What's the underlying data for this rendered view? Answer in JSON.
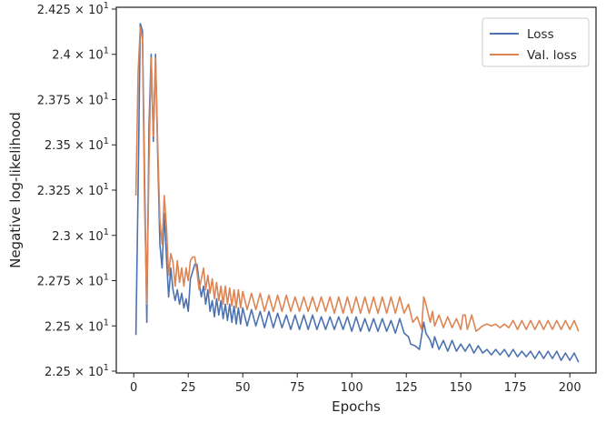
{
  "chart_data": {
    "type": "line",
    "title": "",
    "xlabel": "Epochs",
    "ylabel": "Negative log-likelihood",
    "xlim": [
      -8,
      212
    ],
    "ylim": [
      22.24,
      24.26
    ],
    "x_ticks": [
      0,
      25,
      50,
      75,
      100,
      125,
      150,
      175,
      200
    ],
    "y_ticks": [
      {
        "value": 22.25,
        "label": "2.25 × 10^1"
      },
      {
        "value": 22.5,
        "label": "2.25 × 10^1"
      },
      {
        "value": 22.75,
        "label": "2.275 × 10^1"
      },
      {
        "value": 23.0,
        "label": "2.3 × 10^1"
      },
      {
        "value": 23.25,
        "label": "2.325 × 10^1"
      },
      {
        "value": 23.5,
        "label": "2.35 × 10^1"
      },
      {
        "value": 23.75,
        "label": "2.375 × 10^1"
      },
      {
        "value": 24.0,
        "label": "2.4 × 10^1"
      },
      {
        "value": 24.25,
        "label": "2.425 × 10^1"
      }
    ],
    "legend_position": "top-right",
    "grid": false,
    "series": [
      {
        "name": "Loss",
        "color": "#4c72b0",
        "points": [
          [
            1,
            22.45
          ],
          [
            2,
            23.25
          ],
          [
            3,
            24.17
          ],
          [
            4,
            24.13
          ],
          [
            5,
            23.3
          ],
          [
            6,
            22.52
          ],
          [
            7,
            23.6
          ],
          [
            8,
            24.0
          ],
          [
            9,
            23.52
          ],
          [
            10,
            24.0
          ],
          [
            11,
            23.44
          ],
          [
            12,
            22.95
          ],
          [
            13,
            22.82
          ],
          [
            14,
            23.12
          ],
          [
            15,
            22.88
          ],
          [
            16,
            22.66
          ],
          [
            17,
            22.82
          ],
          [
            18,
            22.7
          ],
          [
            19,
            22.64
          ],
          [
            20,
            22.7
          ],
          [
            21,
            22.62
          ],
          [
            22,
            22.68
          ],
          [
            23,
            22.6
          ],
          [
            24,
            22.65
          ],
          [
            25,
            22.58
          ],
          [
            26,
            22.76
          ],
          [
            27,
            22.8
          ],
          [
            28,
            22.84
          ],
          [
            29,
            22.84
          ],
          [
            30,
            22.74
          ],
          [
            31,
            22.66
          ],
          [
            32,
            22.72
          ],
          [
            33,
            22.62
          ],
          [
            34,
            22.7
          ],
          [
            35,
            22.58
          ],
          [
            36,
            22.64
          ],
          [
            37,
            22.55
          ],
          [
            38,
            22.65
          ],
          [
            39,
            22.56
          ],
          [
            40,
            22.64
          ],
          [
            41,
            22.54
          ],
          [
            42,
            22.62
          ],
          [
            43,
            22.53
          ],
          [
            44,
            22.62
          ],
          [
            45,
            22.52
          ],
          [
            46,
            22.61
          ],
          [
            47,
            22.51
          ],
          [
            48,
            22.6
          ],
          [
            49,
            22.51
          ],
          [
            50,
            22.6
          ],
          [
            52,
            22.5
          ],
          [
            54,
            22.59
          ],
          [
            56,
            22.5
          ],
          [
            58,
            22.58
          ],
          [
            60,
            22.49
          ],
          [
            62,
            22.58
          ],
          [
            64,
            22.49
          ],
          [
            66,
            22.57
          ],
          [
            68,
            22.49
          ],
          [
            70,
            22.56
          ],
          [
            72,
            22.48
          ],
          [
            74,
            22.56
          ],
          [
            76,
            22.48
          ],
          [
            78,
            22.56
          ],
          [
            80,
            22.48
          ],
          [
            82,
            22.56
          ],
          [
            84,
            22.48
          ],
          [
            86,
            22.55
          ],
          [
            88,
            22.48
          ],
          [
            90,
            22.55
          ],
          [
            92,
            22.48
          ],
          [
            94,
            22.55
          ],
          [
            96,
            22.48
          ],
          [
            98,
            22.55
          ],
          [
            100,
            22.47
          ],
          [
            102,
            22.55
          ],
          [
            104,
            22.47
          ],
          [
            106,
            22.54
          ],
          [
            108,
            22.47
          ],
          [
            110,
            22.54
          ],
          [
            112,
            22.47
          ],
          [
            114,
            22.54
          ],
          [
            116,
            22.47
          ],
          [
            118,
            22.53
          ],
          [
            120,
            22.46
          ],
          [
            122,
            22.54
          ],
          [
            124,
            22.46
          ],
          [
            126,
            22.44
          ],
          [
            127,
            22.4
          ],
          [
            129,
            22.39
          ],
          [
            131,
            22.37
          ],
          [
            133,
            22.52
          ],
          [
            134,
            22.46
          ],
          [
            136,
            22.42
          ],
          [
            137,
            22.38
          ],
          [
            138,
            22.44
          ],
          [
            140,
            22.37
          ],
          [
            142,
            22.42
          ],
          [
            144,
            22.36
          ],
          [
            146,
            22.42
          ],
          [
            148,
            22.36
          ],
          [
            150,
            22.4
          ],
          [
            152,
            22.36
          ],
          [
            154,
            22.4
          ],
          [
            156,
            22.35
          ],
          [
            158,
            22.39
          ],
          [
            160,
            22.35
          ],
          [
            162,
            22.37
          ],
          [
            164,
            22.34
          ],
          [
            166,
            22.37
          ],
          [
            168,
            22.34
          ],
          [
            170,
            22.37
          ],
          [
            172,
            22.33
          ],
          [
            174,
            22.37
          ],
          [
            176,
            22.33
          ],
          [
            178,
            22.36
          ],
          [
            180,
            22.33
          ],
          [
            182,
            22.36
          ],
          [
            184,
            22.32
          ],
          [
            186,
            22.36
          ],
          [
            188,
            22.32
          ],
          [
            190,
            22.36
          ],
          [
            192,
            22.32
          ],
          [
            194,
            22.36
          ],
          [
            196,
            22.31
          ],
          [
            198,
            22.35
          ],
          [
            200,
            22.31
          ],
          [
            202,
            22.35
          ],
          [
            204,
            22.3
          ]
        ]
      },
      {
        "name": "Val. loss",
        "color": "#dd8452",
        "points": [
          [
            1,
            23.22
          ],
          [
            2,
            23.9
          ],
          [
            3,
            24.15
          ],
          [
            4,
            24.08
          ],
          [
            5,
            23.15
          ],
          [
            6,
            22.62
          ],
          [
            7,
            23.4
          ],
          [
            8,
            23.98
          ],
          [
            9,
            23.55
          ],
          [
            10,
            23.98
          ],
          [
            11,
            23.5
          ],
          [
            12,
            23.08
          ],
          [
            13,
            22.95
          ],
          [
            14,
            23.22
          ],
          [
            15,
            23.05
          ],
          [
            16,
            22.78
          ],
          [
            17,
            22.9
          ],
          [
            18,
            22.85
          ],
          [
            19,
            22.72
          ],
          [
            20,
            22.86
          ],
          [
            21,
            22.74
          ],
          [
            22,
            22.82
          ],
          [
            23,
            22.72
          ],
          [
            24,
            22.82
          ],
          [
            25,
            22.75
          ],
          [
            26,
            22.86
          ],
          [
            27,
            22.88
          ],
          [
            28,
            22.88
          ],
          [
            29,
            22.8
          ],
          [
            30,
            22.7
          ],
          [
            31,
            22.76
          ],
          [
            32,
            22.82
          ],
          [
            33,
            22.7
          ],
          [
            34,
            22.78
          ],
          [
            35,
            22.68
          ],
          [
            36,
            22.76
          ],
          [
            37,
            22.65
          ],
          [
            38,
            22.74
          ],
          [
            39,
            22.64
          ],
          [
            40,
            22.72
          ],
          [
            41,
            22.62
          ],
          [
            42,
            22.72
          ],
          [
            43,
            22.62
          ],
          [
            44,
            22.71
          ],
          [
            45,
            22.61
          ],
          [
            46,
            22.7
          ],
          [
            47,
            22.6
          ],
          [
            48,
            22.7
          ],
          [
            49,
            22.6
          ],
          [
            50,
            22.69
          ],
          [
            52,
            22.59
          ],
          [
            54,
            22.68
          ],
          [
            56,
            22.59
          ],
          [
            58,
            22.68
          ],
          [
            60,
            22.58
          ],
          [
            62,
            22.67
          ],
          [
            64,
            22.58
          ],
          [
            66,
            22.67
          ],
          [
            68,
            22.58
          ],
          [
            70,
            22.67
          ],
          [
            72,
            22.58
          ],
          [
            74,
            22.66
          ],
          [
            76,
            22.58
          ],
          [
            78,
            22.66
          ],
          [
            80,
            22.58
          ],
          [
            82,
            22.66
          ],
          [
            84,
            22.58
          ],
          [
            86,
            22.66
          ],
          [
            88,
            22.58
          ],
          [
            90,
            22.66
          ],
          [
            92,
            22.57
          ],
          [
            94,
            22.66
          ],
          [
            96,
            22.57
          ],
          [
            98,
            22.66
          ],
          [
            100,
            22.57
          ],
          [
            102,
            22.66
          ],
          [
            104,
            22.57
          ],
          [
            106,
            22.66
          ],
          [
            108,
            22.57
          ],
          [
            110,
            22.66
          ],
          [
            112,
            22.57
          ],
          [
            114,
            22.66
          ],
          [
            116,
            22.57
          ],
          [
            118,
            22.66
          ],
          [
            120,
            22.57
          ],
          [
            122,
            22.66
          ],
          [
            124,
            22.57
          ],
          [
            126,
            22.62
          ],
          [
            128,
            22.52
          ],
          [
            130,
            22.55
          ],
          [
            132,
            22.48
          ],
          [
            133,
            22.66
          ],
          [
            134,
            22.62
          ],
          [
            136,
            22.52
          ],
          [
            137,
            22.58
          ],
          [
            138,
            22.5
          ],
          [
            140,
            22.56
          ],
          [
            142,
            22.49
          ],
          [
            144,
            22.55
          ],
          [
            146,
            22.49
          ],
          [
            148,
            22.54
          ],
          [
            150,
            22.48
          ],
          [
            151,
            22.56
          ],
          [
            152,
            22.56
          ],
          [
            153,
            22.48
          ],
          [
            155,
            22.56
          ],
          [
            157,
            22.47
          ],
          [
            160,
            22.5
          ],
          [
            162,
            22.51
          ],
          [
            164,
            22.5
          ],
          [
            166,
            22.51
          ],
          [
            168,
            22.49
          ],
          [
            170,
            22.51
          ],
          [
            172,
            22.49
          ],
          [
            174,
            22.53
          ],
          [
            176,
            22.48
          ],
          [
            178,
            22.53
          ],
          [
            180,
            22.48
          ],
          [
            182,
            22.53
          ],
          [
            184,
            22.48
          ],
          [
            186,
            22.53
          ],
          [
            188,
            22.48
          ],
          [
            190,
            22.53
          ],
          [
            192,
            22.48
          ],
          [
            194,
            22.53
          ],
          [
            196,
            22.48
          ],
          [
            198,
            22.53
          ],
          [
            200,
            22.48
          ],
          [
            202,
            22.53
          ],
          [
            204,
            22.47
          ]
        ]
      }
    ]
  }
}
